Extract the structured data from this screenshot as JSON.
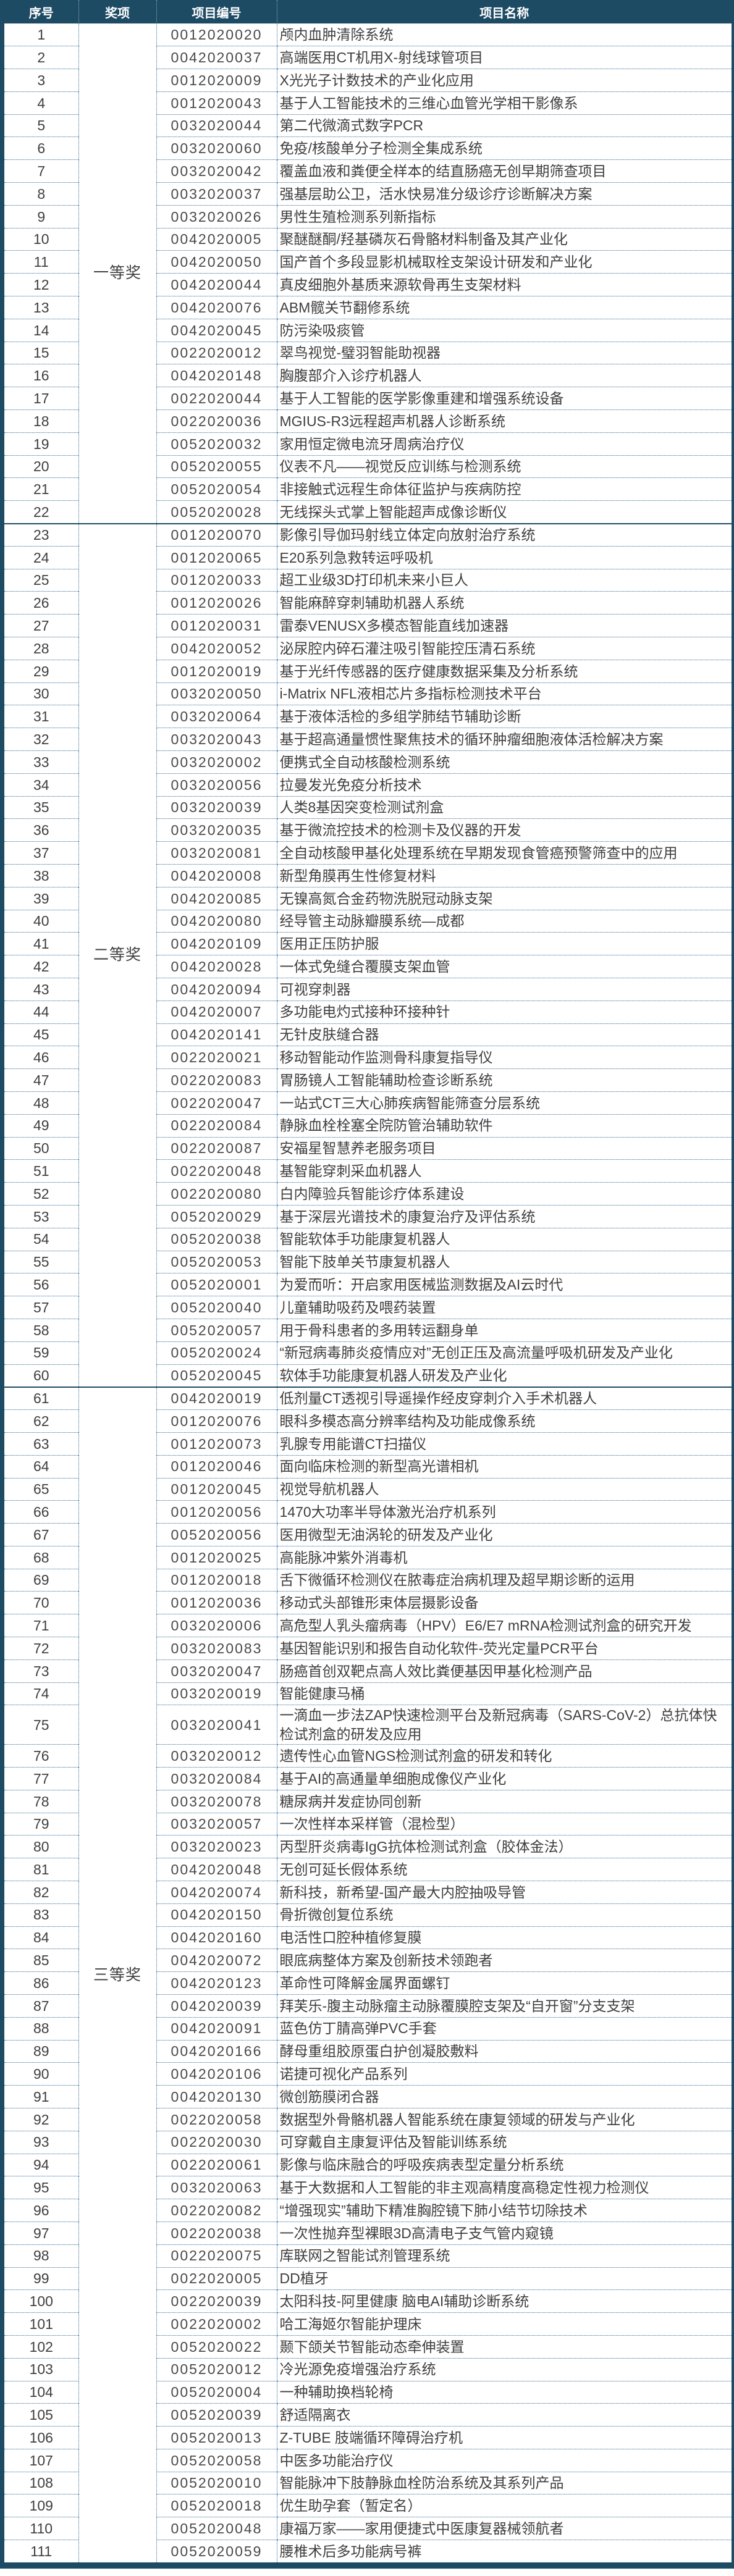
{
  "colors": {
    "navy": "#1d4b64",
    "dotted_line": "#2e6a96",
    "body_text": "#3f3f3f"
  },
  "header": {
    "col_index": "序号",
    "col_award": "奖项",
    "col_code": "项目编号",
    "col_name": "项目名称"
  },
  "groups": [
    {
      "award": "一等奖",
      "rows": [
        {
          "no": 1,
          "code": "0012020020",
          "name": "颅内血肿清除系统"
        },
        {
          "no": 2,
          "code": "0042020037",
          "name": "高端医用CT机用X-射线球管项目"
        },
        {
          "no": 3,
          "code": "0012020009",
          "name": "X光光子计数技术的产业化应用"
        },
        {
          "no": 4,
          "code": "0012020043",
          "name": "基于人工智能技术的三维心血管光学相干影像系"
        },
        {
          "no": 5,
          "code": "0032020044",
          "name": "第二代微滴式数字PCR"
        },
        {
          "no": 6,
          "code": "0032020060",
          "name": "免疫/核酸单分子检测全集成系统"
        },
        {
          "no": 7,
          "code": "0032020042",
          "name": "覆盖血液和粪便全样本的结直肠癌无创早期筛查项目"
        },
        {
          "no": 8,
          "code": "0032020037",
          "name": "强基层助公卫，活水快易准分级诊疗诊断解决方案"
        },
        {
          "no": 9,
          "code": "0032020026",
          "name": "男性生殖检测系列新指标"
        },
        {
          "no": 10,
          "code": "0042020005",
          "name": "聚醚醚酮/羟基磷灰石骨骼材料制备及其产业化"
        },
        {
          "no": 11,
          "code": "0042020050",
          "name": "国产首个多段显影机械取栓支架设计研发和产业化"
        },
        {
          "no": 12,
          "code": "0042020044",
          "name": "真皮细胞外基质来源软骨再生支架材料"
        },
        {
          "no": 13,
          "code": "0042020076",
          "name": "ABM髋关节翻修系统"
        },
        {
          "no": 14,
          "code": "0042020045",
          "name": "防污染吸痰管"
        },
        {
          "no": 15,
          "code": "0022020012",
          "name": "翠鸟视觉-璧羽智能助视器"
        },
        {
          "no": 16,
          "code": "0042020148",
          "name": "胸腹部介入诊疗机器人"
        },
        {
          "no": 17,
          "code": "0022020044",
          "name": "基于人工智能的医学影像重建和增强系统设备"
        },
        {
          "no": 18,
          "code": "0022020036",
          "name": "MGIUS-R3远程超声机器人诊断系统"
        },
        {
          "no": 19,
          "code": "0052020032",
          "name": "家用恒定微电流牙周病治疗仪"
        },
        {
          "no": 20,
          "code": "0052020055",
          "name": "仪表不凡——视觉反应训练与检测系统"
        },
        {
          "no": 21,
          "code": "0052020054",
          "name": "非接触式远程生命体征监护与疾病防控"
        },
        {
          "no": 22,
          "code": "0052020028",
          "name": "无线探头式掌上智能超声成像诊断仪"
        }
      ]
    },
    {
      "award": "二等奖",
      "rows": [
        {
          "no": 23,
          "code": "0012020070",
          "name": "影像引导伽玛射线立体定向放射治疗系统"
        },
        {
          "no": 24,
          "code": "0012020065",
          "name": "E20系列急救转运呼吸机"
        },
        {
          "no": 25,
          "code": "0012020033",
          "name": "超工业级3D打印机未来小巨人"
        },
        {
          "no": 26,
          "code": "0012020026",
          "name": "智能麻醉穿刺辅助机器人系统"
        },
        {
          "no": 27,
          "code": "0012020031",
          "name": "雷泰VENUSX多模态智能直线加速器"
        },
        {
          "no": 28,
          "code": "0042020052",
          "name": "泌尿腔内碎石灌注吸引智能控压清石系统"
        },
        {
          "no": 29,
          "code": "0012020019",
          "name": "基于光纤传感器的医疗健康数据采集及分析系统"
        },
        {
          "no": 30,
          "code": "0032020050",
          "name": "i-Matrix NFL液相芯片多指标检测技术平台"
        },
        {
          "no": 31,
          "code": "0032020064",
          "name": "基于液体活检的多组学肺结节辅助诊断"
        },
        {
          "no": 32,
          "code": "0032020043",
          "name": "基于超高通量惯性聚焦技术的循环肿瘤细胞液体活检解决方案"
        },
        {
          "no": 33,
          "code": "0032020002",
          "name": "便携式全自动核酸检测系统"
        },
        {
          "no": 34,
          "code": "0032020056",
          "name": "拉曼发光免疫分析技术"
        },
        {
          "no": 35,
          "code": "0032020039",
          "name": "人类8基因突变检测试剂盒"
        },
        {
          "no": 36,
          "code": "0032020035",
          "name": "基于微流控技术的检测卡及仪器的开发"
        },
        {
          "no": 37,
          "code": "0032020081",
          "name": "全自动核酸甲基化处理系统在早期发现食管癌预警筛查中的应用"
        },
        {
          "no": 38,
          "code": "0042020008",
          "name": "新型角膜再生性修复材料"
        },
        {
          "no": 39,
          "code": "0042020085",
          "name": "无镍高氮合金药物洗脱冠动脉支架"
        },
        {
          "no": 40,
          "code": "0042020080",
          "name": "经导管主动脉瓣膜系统—成都"
        },
        {
          "no": 41,
          "code": "0042020109",
          "name": "医用正压防护服"
        },
        {
          "no": 42,
          "code": "0042020028",
          "name": "一体式免缝合覆膜支架血管"
        },
        {
          "no": 43,
          "code": "0042020094",
          "name": "可视穿刺器"
        },
        {
          "no": 44,
          "code": "0042020007",
          "name": "多功能电灼式接种环接种针"
        },
        {
          "no": 45,
          "code": "0042020141",
          "name": "无针皮肤缝合器"
        },
        {
          "no": 46,
          "code": "0022020021",
          "name": "移动智能动作监测骨科康复指导仪"
        },
        {
          "no": 47,
          "code": "0022020083",
          "name": "胃肠镜人工智能辅助检查诊断系统"
        },
        {
          "no": 48,
          "code": "0022020047",
          "name": "一站式CT三大心肺疾病智能筛查分层系统"
        },
        {
          "no": 49,
          "code": "0022020084",
          "name": "静脉血栓栓塞全院防管治辅助软件"
        },
        {
          "no": 50,
          "code": "0022020087",
          "name": "安福星智慧养老服务项目"
        },
        {
          "no": 51,
          "code": "0022020048",
          "name": "基智能穿刺采血机器人"
        },
        {
          "no": 52,
          "code": "0022020080",
          "name": "白内障验兵智能诊疗体系建设"
        },
        {
          "no": 53,
          "code": "0052020029",
          "name": "基于深层光谱技术的康复治疗及评估系统"
        },
        {
          "no": 54,
          "code": "0052020038",
          "name": "智能软体手功能康复机器人"
        },
        {
          "no": 55,
          "code": "0052020053",
          "name": "智能下肢单关节康复机器人"
        },
        {
          "no": 56,
          "code": "0052020001",
          "name": "为爱而听：开启家用医械监测数据及AI云时代"
        },
        {
          "no": 57,
          "code": "0052020040",
          "name": "儿童辅助吸药及喂药装置"
        },
        {
          "no": 58,
          "code": "0052020057",
          "name": "用于骨科患者的多用转运翻身单"
        },
        {
          "no": 59,
          "code": "0052020024",
          "name": "“新冠病毒肺炎疫情应对”无创正压及高流量呼吸机研发及产业化"
        },
        {
          "no": 60,
          "code": "0052020045",
          "name": "软体手功能康复机器人研发及产业化"
        }
      ]
    },
    {
      "award": "三等奖",
      "rows": [
        {
          "no": 61,
          "code": "0042020019",
          "name": "低剂量CT透视引导遥操作经皮穿刺介入手术机器人"
        },
        {
          "no": 62,
          "code": "0012020076",
          "name": "眼科多模态高分辨率结构及功能成像系统"
        },
        {
          "no": 63,
          "code": "0012020073",
          "name": "乳腺专用能谱CT扫描仪"
        },
        {
          "no": 64,
          "code": "0012020046",
          "name": "面向临床检测的新型高光谱相机"
        },
        {
          "no": 65,
          "code": "0012020045",
          "name": "视觉导航机器人"
        },
        {
          "no": 66,
          "code": "0012020056",
          "name": "1470大功率半导体激光治疗机系列"
        },
        {
          "no": 67,
          "code": "0052020056",
          "name": "医用微型无油涡轮的研发及产业化"
        },
        {
          "no": 68,
          "code": "0012020025",
          "name": "高能脉冲紫外消毒机"
        },
        {
          "no": 69,
          "code": "0012020018",
          "name": "舌下微循环检测仪在脓毒症治病机理及超早期诊断的运用"
        },
        {
          "no": 70,
          "code": "0012020036",
          "name": "移动式头部锥形束体层摄影设备"
        },
        {
          "no": 71,
          "code": "0032020006",
          "name": "高危型人乳头瘤病毒（HPV）E6/E7 mRNA检测试剂盒的研究开发"
        },
        {
          "no": 72,
          "code": "0032020083",
          "name": "基因智能识别和报告自动化软件-荧光定量PCR平台"
        },
        {
          "no": 73,
          "code": "0032020047",
          "name": "肠癌首创双靶点高人效比粪便基因甲基化检测产品"
        },
        {
          "no": 74,
          "code": "0032020019",
          "name": "智能健康马桶"
        },
        {
          "no": 75,
          "code": "0032020041",
          "name": "一滴血一步法ZAP快速检测平台及新冠病毒（SARS-CoV-2）总抗体快检试剂盒的研发及应用"
        },
        {
          "no": 76,
          "code": "0032020012",
          "name": "遗传性心血管NGS检测试剂盒的研发和转化"
        },
        {
          "no": 77,
          "code": "0032020084",
          "name": "基于AI的高通量单细胞成像仪产业化"
        },
        {
          "no": 78,
          "code": "0032020078",
          "name": "糖尿病并发症协同创新"
        },
        {
          "no": 79,
          "code": "0032020057",
          "name": "一次性样本采样管（混检型）"
        },
        {
          "no": 80,
          "code": "0032020023",
          "name": "丙型肝炎病毒IgG抗体检测试剂盒（胶体金法）"
        },
        {
          "no": 81,
          "code": "0042020048",
          "name": "无创可延长假体系统"
        },
        {
          "no": 82,
          "code": "0042020074",
          "name": "新科技，新希望-国产最大内腔抽吸导管"
        },
        {
          "no": 83,
          "code": "0042020150",
          "name": "骨折微创复位系统"
        },
        {
          "no": 84,
          "code": "0042020160",
          "name": "电活性口腔种植修复膜"
        },
        {
          "no": 85,
          "code": "0042020072",
          "name": "眼底病整体方案及创新技术领跑者"
        },
        {
          "no": 86,
          "code": "0042020123",
          "name": "革命性可降解金属界面螺钉"
        },
        {
          "no": 87,
          "code": "0042020039",
          "name": "拜芙乐-腹主动脉瘤主动脉覆膜腔支架及“自开窗”分支支架"
        },
        {
          "no": 88,
          "code": "0042020091",
          "name": "蓝色仿丁腈高弹PVC手套"
        },
        {
          "no": 89,
          "code": "0042020166",
          "name": "酵母重组胶原蛋白护创凝胶敷料"
        },
        {
          "no": 90,
          "code": "0042020106",
          "name": "诺捷可视化产品系列"
        },
        {
          "no": 91,
          "code": "0042020130",
          "name": "微创筋膜闭合器"
        },
        {
          "no": 92,
          "code": "0022020058",
          "name": "数据型外骨骼机器人智能系统在康复领域的研发与产业化"
        },
        {
          "no": 93,
          "code": "0022020030",
          "name": "可穿戴自主康复评估及智能训练系统"
        },
        {
          "no": 94,
          "code": "0022020061",
          "name": "影像与临床融合的呼吸疾病表型定量分析系统"
        },
        {
          "no": 95,
          "code": "0032020063",
          "name": "基于大数据和人工智能的非主观高精度高稳定性视力检测仪"
        },
        {
          "no": 96,
          "code": "0022020082",
          "name": "“增强现实”辅助下精准胸腔镜下肺小结节切除技术"
        },
        {
          "no": 97,
          "code": "0022020038",
          "name": "一次性抛弃型裸眼3D高清电子支气管内窥镜"
        },
        {
          "no": 98,
          "code": "0022020075",
          "name": "库联网之智能试剂管理系统"
        },
        {
          "no": 99,
          "code": "0022020005",
          "name": "DD植牙"
        },
        {
          "no": 100,
          "code": "0022020039",
          "name": "太阳科技-阿里健康 脑电AI辅助诊断系统"
        },
        {
          "no": 101,
          "code": "0022020002",
          "name": "哈工海姬尔智能护理床"
        },
        {
          "no": 102,
          "code": "0052020022",
          "name": "颞下颌关节智能动态牵伸装置"
        },
        {
          "no": 103,
          "code": "0052020012",
          "name": "冷光源免疫增强治疗系统"
        },
        {
          "no": 104,
          "code": "0052020004",
          "name": "一种辅助换档轮椅"
        },
        {
          "no": 105,
          "code": "0052020039",
          "name": "舒适隔离衣"
        },
        {
          "no": 106,
          "code": "0052020013",
          "name": "Z-TUBE 肢端循环障碍治疗机"
        },
        {
          "no": 107,
          "code": "0052020058",
          "name": "中医多功能治疗仪"
        },
        {
          "no": 108,
          "code": "0052020010",
          "name": "智能脉冲下肢静脉血栓防治系统及其系列产品"
        },
        {
          "no": 109,
          "code": "0052020018",
          "name": "优生助孕套（暂定名）"
        },
        {
          "no": 110,
          "code": "0052020048",
          "name": "康福万家——家用便捷式中医康复器械领航者"
        },
        {
          "no": 111,
          "code": "0052020059",
          "name": "腰椎术后多功能病号裤"
        }
      ]
    }
  ]
}
